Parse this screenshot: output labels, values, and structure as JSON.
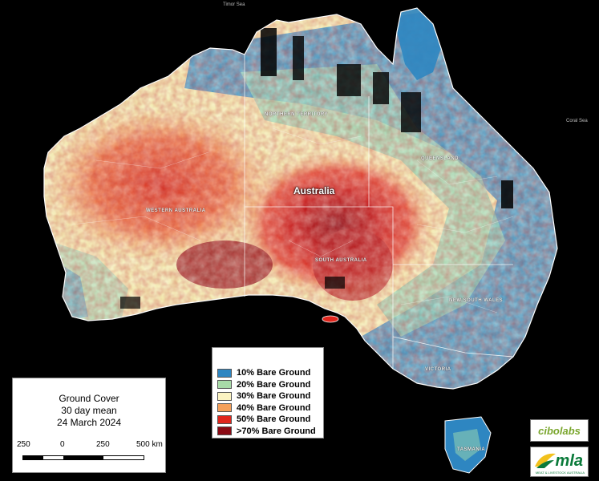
{
  "map": {
    "country_label": "Australia",
    "sea_labels": [
      "Timor Sea",
      "Coral Sea"
    ],
    "state_labels": [
      "NORTHERN TERRITORY",
      "QUEENSLAND",
      "WESTERN AUSTRALIA",
      "SOUTH AUSTRALIA",
      "NEW SOUTH WALES",
      "VICTORIA",
      "TASMANIA"
    ]
  },
  "legend": {
    "items": [
      {
        "label": "10% Bare Ground",
        "color": "#2e86c1"
      },
      {
        "label": "20% Bare Ground",
        "color": "#a8dba8"
      },
      {
        "label": "30% Bare Ground",
        "color": "#fbf3c2"
      },
      {
        "label": "40% Bare Ground",
        "color": "#f5a05a"
      },
      {
        "label": "50% Bare Ground",
        "color": "#e0261d"
      },
      {
        "label": ">70% Bare Ground",
        "color": "#8b0a14"
      }
    ]
  },
  "info": {
    "title": "Ground Cover",
    "subtitle": "30 day mean",
    "date": "24 March 2024",
    "scale_ticks": [
      "250",
      "0",
      "250",
      "500 km"
    ]
  },
  "logos": {
    "cibolabs": "cibolabs",
    "mla": "mla",
    "mla_sub": "MEAT & LIVESTOCK AUSTRALIA"
  }
}
